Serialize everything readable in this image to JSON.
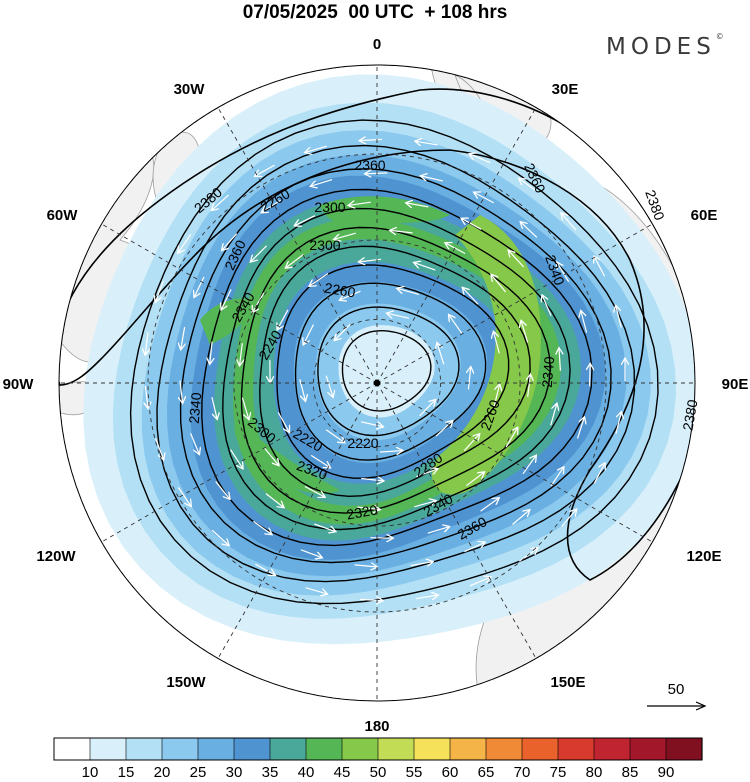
{
  "title": "07/05/2025  00 UTC  + 108 hrs",
  "brand": "MODES",
  "brand_mark": "©",
  "longitude_labels": [
    "0",
    "30E",
    "60E",
    "90E",
    "120E",
    "150E",
    "180",
    "150W",
    "120W",
    "90W",
    "60W",
    "30W"
  ],
  "contour_labels": [
    "2380",
    "2380",
    "2380",
    "2360",
    "2360",
    "2360",
    "2360",
    "2340",
    "2340",
    "2340",
    "2340",
    "2340",
    "2320",
    "2320",
    "2300",
    "2300",
    "2300",
    "2280",
    "2260",
    "2260",
    "2260",
    "2240",
    "2220",
    "2220"
  ],
  "legend": {
    "vector_reference": "50"
  },
  "colorbar": {
    "ticks": [
      "10",
      "15",
      "20",
      "25",
      "30",
      "35",
      "40",
      "45",
      "50",
      "55",
      "60",
      "65",
      "70",
      "75",
      "80",
      "85",
      "90"
    ],
    "colors": [
      "#ffffff",
      "#d9f0fb",
      "#b3e0f5",
      "#8cc9ee",
      "#6aafe2",
      "#4f93d0",
      "#4aa89a",
      "#55b655",
      "#86c84a",
      "#c2dc55",
      "#f6e15a",
      "#f5b447",
      "#f08a36",
      "#e9622c",
      "#d83a2d",
      "#c02430",
      "#a3172a",
      "#80101f"
    ]
  },
  "map": {
    "land_color": "#f1f1f1",
    "coast_color": "#9c9c9c",
    "contour_color": "#000000",
    "streamline_color": "#ffffff"
  }
}
